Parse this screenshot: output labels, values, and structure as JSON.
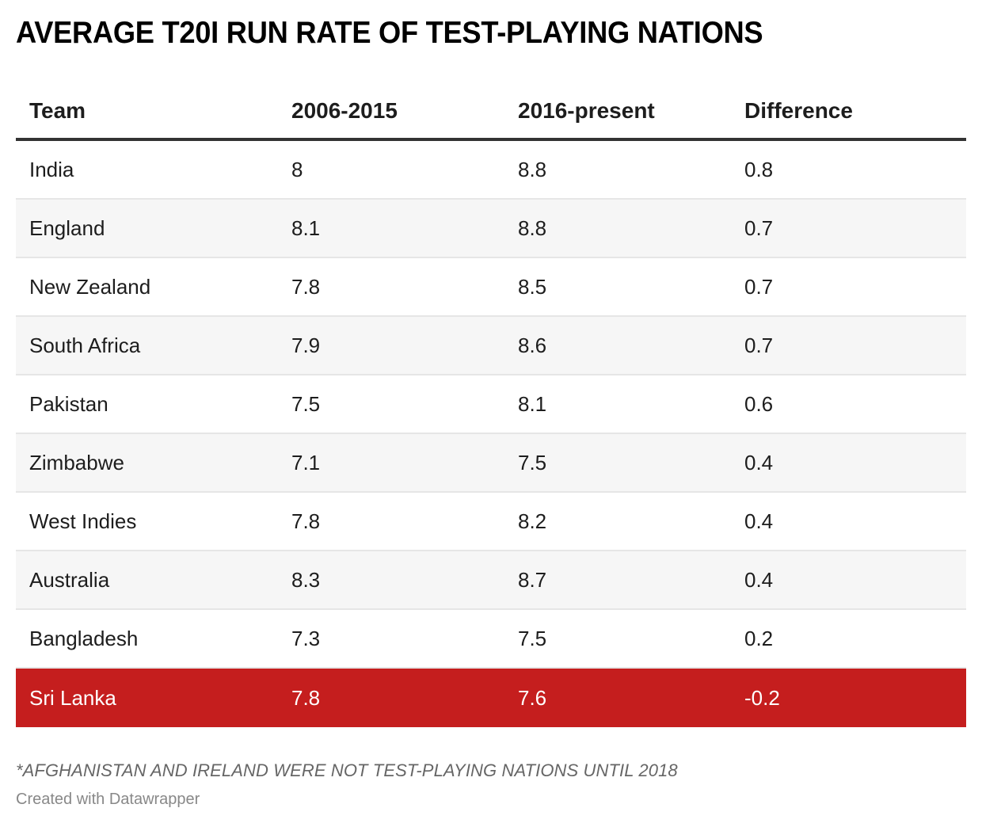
{
  "title": "AVERAGE T20I RUN RATE OF TEST-PLAYING NATIONS",
  "footnote": "*AFGHANISTAN AND IRELAND WERE NOT TEST-PLAYING NATIONS UNTIL 2018",
  "credit": "Created with Datawrapper",
  "colors": {
    "highlight_background": "#c51e1e",
    "highlight_text": "#ffffff",
    "stripe": "#f6f6f6",
    "header_rule": "#333333"
  },
  "chart_data": {
    "type": "table",
    "title": "AVERAGE T20I RUN RATE OF TEST-PLAYING NATIONS",
    "columns": [
      "Team",
      "2006-2015",
      "2016-present",
      "Difference"
    ],
    "rows": [
      {
        "team": "India",
        "p2006_2015": "8",
        "p2016_present": "8.8",
        "difference": "0.8",
        "highlight": false
      },
      {
        "team": "England",
        "p2006_2015": "8.1",
        "p2016_present": "8.8",
        "difference": "0.7",
        "highlight": false
      },
      {
        "team": "New Zealand",
        "p2006_2015": "7.8",
        "p2016_present": "8.5",
        "difference": "0.7",
        "highlight": false
      },
      {
        "team": "South Africa",
        "p2006_2015": "7.9",
        "p2016_present": "8.6",
        "difference": "0.7",
        "highlight": false
      },
      {
        "team": "Pakistan",
        "p2006_2015": "7.5",
        "p2016_present": "8.1",
        "difference": "0.6",
        "highlight": false
      },
      {
        "team": "Zimbabwe",
        "p2006_2015": "7.1",
        "p2016_present": "7.5",
        "difference": "0.4",
        "highlight": false
      },
      {
        "team": "West Indies",
        "p2006_2015": "7.8",
        "p2016_present": "8.2",
        "difference": "0.4",
        "highlight": false
      },
      {
        "team": "Australia",
        "p2006_2015": "8.3",
        "p2016_present": "8.7",
        "difference": "0.4",
        "highlight": false
      },
      {
        "team": "Bangladesh",
        "p2006_2015": "7.3",
        "p2016_present": "7.5",
        "difference": "0.2",
        "highlight": false
      },
      {
        "team": "Sri Lanka",
        "p2006_2015": "7.8",
        "p2016_present": "7.6",
        "difference": "-0.2",
        "highlight": true
      }
    ],
    "footnote": "*AFGHANISTAN AND IRELAND WERE NOT TEST-PLAYING NATIONS UNTIL 2018",
    "source_credit": "Created with Datawrapper"
  }
}
